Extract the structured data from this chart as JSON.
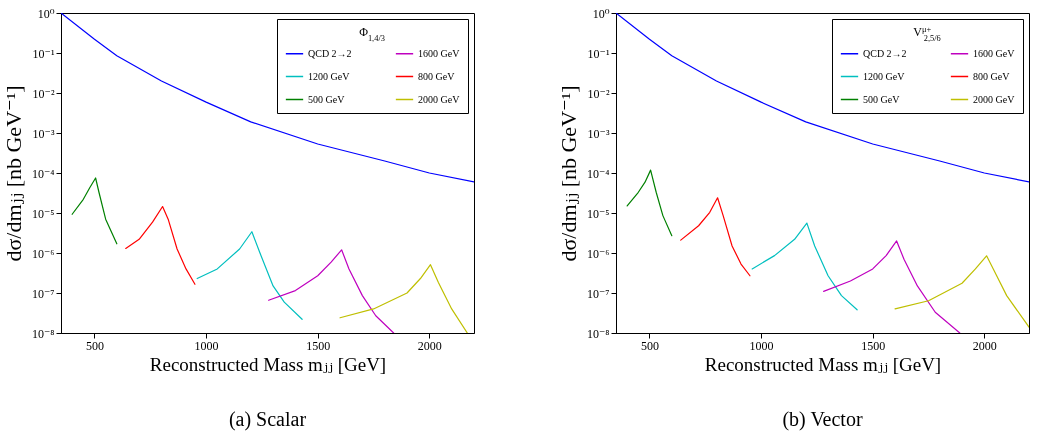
{
  "chart_data": [
    {
      "type": "line",
      "title": "(a) Scalar",
      "xlabel": "Reconstructed Mass mⱼⱼ [GeV]",
      "ylabel": "dσ/dmⱼⱼ [nb GeV⁻¹]",
      "legend_title": "Φ$_{1,4/3}$",
      "log": true,
      "grid": false,
      "legend": "top right",
      "xlim": [
        350,
        2200
      ],
      "xticks": [
        500,
        1000,
        1500,
        2000
      ],
      "ylim": [
        1e-08,
        1
      ],
      "yticks": [
        {
          "value": 1e-08,
          "label": "10⁻⁸"
        },
        {
          "value": 1e-07,
          "label": "10⁻⁷"
        },
        {
          "value": 1e-06,
          "label": "10⁻⁶"
        },
        {
          "value": 1e-05,
          "label": "10⁻⁵"
        },
        {
          "value": 0.0001,
          "label": "10⁻⁴"
        },
        {
          "value": 0.001,
          "label": "10⁻³"
        },
        {
          "value": 0.01,
          "label": "10⁻²"
        },
        {
          "value": 0.1,
          "label": "10⁻¹"
        },
        {
          "value": 1,
          "label": "10⁰"
        }
      ],
      "series": [
        {
          "name": "QCD 2→2",
          "color": "#0000ff",
          "x": [
            350,
            500,
            600,
            800,
            1000,
            1200,
            1500,
            1800,
            2000,
            2200
          ],
          "values": [
            1.0,
            0.22,
            0.085,
            0.02,
            0.0059,
            0.0019,
            0.00053,
            0.0002,
            0.0001,
            6e-05
          ]
        },
        {
          "name": "500 GeV",
          "color": "#008000",
          "x": [
            400,
            450,
            480,
            505,
            520,
            550,
            600
          ],
          "values": [
            9.3e-06,
            2.2e-05,
            4.4e-05,
            7.5e-05,
            3.3e-05,
            7e-06,
            1.7e-06
          ]
        },
        {
          "name": "800 GeV",
          "color": "#ff0000",
          "x": [
            640,
            700,
            760,
            805,
            830,
            870,
            910,
            950
          ],
          "values": [
            1.3e-06,
            2.2e-06,
            5.9e-06,
            1.45e-05,
            7e-06,
            1.26e-06,
            4e-07,
            1.65e-07
          ]
        },
        {
          "name": "1200 GeV",
          "color": "#00bfbf",
          "x": [
            960,
            1050,
            1150,
            1205,
            1240,
            1300,
            1350,
            1430
          ],
          "values": [
            2.3e-07,
            4e-07,
            1.26e-06,
            3.4e-06,
            1.04e-06,
            1.5e-07,
            5.9e-08,
            2.2e-08
          ]
        },
        {
          "name": "1600 GeV",
          "color": "#bf00bf",
          "x": [
            1280,
            1400,
            1500,
            1560,
            1607,
            1640,
            1700,
            1760,
            1840
          ],
          "values": [
            6.6e-08,
            1.15e-07,
            2.7e-07,
            5.9e-07,
            1.2e-06,
            4e-07,
            8.6e-08,
            2.7e-08,
            1e-08
          ]
        },
        {
          "name": "2000 GeV",
          "color": "#bfbf00",
          "x": [
            1600,
            1750,
            1900,
            1960,
            2005,
            2040,
            2100,
            2170
          ],
          "values": [
            2.4e-08,
            4e-08,
            1e-07,
            2.3e-07,
            5.1e-07,
            1.85e-07,
            4e-08,
            1e-08
          ]
        }
      ]
    },
    {
      "type": "line",
      "title": "(b) Vector",
      "xlabel": "Reconstructed Mass mⱼⱼ [GeV]",
      "ylabel": "dσ/dmⱼⱼ [nb GeV⁻¹]",
      "legend_title": "V$^{μ+}$$_{2,5/6}$",
      "log": true,
      "grid": false,
      "legend": "top right",
      "xlim": [
        350,
        2200
      ],
      "xticks": [
        500,
        1000,
        1500,
        2000
      ],
      "ylim": [
        1e-08,
        1
      ],
      "yticks": [
        {
          "value": 1e-08,
          "label": "10⁻⁸"
        },
        {
          "value": 1e-07,
          "label": "10⁻⁷"
        },
        {
          "value": 1e-06,
          "label": "10⁻⁶"
        },
        {
          "value": 1e-05,
          "label": "10⁻⁵"
        },
        {
          "value": 0.0001,
          "label": "10⁻⁴"
        },
        {
          "value": 0.001,
          "label": "10⁻³"
        },
        {
          "value": 0.01,
          "label": "10⁻²"
        },
        {
          "value": 0.1,
          "label": "10⁻¹"
        },
        {
          "value": 1,
          "label": "10⁰"
        }
      ],
      "series": [
        {
          "name": "QCD 2→2",
          "color": "#0000ff",
          "x": [
            350,
            500,
            600,
            800,
            1000,
            1200,
            1500,
            1800,
            2000,
            2200
          ],
          "values": [
            1.0,
            0.22,
            0.085,
            0.02,
            0.0059,
            0.0019,
            0.00053,
            0.0002,
            0.0001,
            6e-05
          ]
        },
        {
          "name": "500 GeV",
          "color": "#008000",
          "x": [
            400,
            450,
            480,
            505,
            530,
            560,
            600
          ],
          "values": [
            1.5e-05,
            3.3e-05,
            5.9e-05,
            0.000118,
            3.3e-05,
            8.6e-06,
            2.7e-06
          ]
        },
        {
          "name": "800 GeV",
          "color": "#ff0000",
          "x": [
            640,
            720,
            770,
            805,
            830,
            870,
            910,
            950
          ],
          "values": [
            2.1e-06,
            4.8e-06,
            1.04e-05,
            2.4e-05,
            8.6e-06,
            1.5e-06,
            5.3e-07,
            2.7e-07
          ]
        },
        {
          "name": "1200 GeV",
          "color": "#00bfbf",
          "x": [
            960,
            1060,
            1150,
            1205,
            1240,
            1300,
            1360,
            1430
          ],
          "values": [
            4e-07,
            8.6e-07,
            2.2e-06,
            5.6e-06,
            1.5e-06,
            2.7e-07,
            8.6e-08,
            3.8e-08
          ]
        },
        {
          "name": "1600 GeV",
          "color": "#bf00bf",
          "x": [
            1280,
            1400,
            1500,
            1560,
            1607,
            1640,
            1700,
            1780,
            1890
          ],
          "values": [
            1.1e-07,
            2e-07,
            4e-07,
            8.6e-07,
            2e-06,
            7e-07,
            1.5e-07,
            3.3e-08,
            1e-08
          ]
        },
        {
          "name": "2000 GeV",
          "color": "#bfbf00",
          "x": [
            1600,
            1750,
            1900,
            1960,
            2010,
            2040,
            2100,
            2200
          ],
          "values": [
            4e-08,
            6.4e-08,
            1.75e-07,
            4e-07,
            8.5e-07,
            4e-07,
            8.6e-08,
            1.4e-08
          ]
        }
      ]
    }
  ]
}
